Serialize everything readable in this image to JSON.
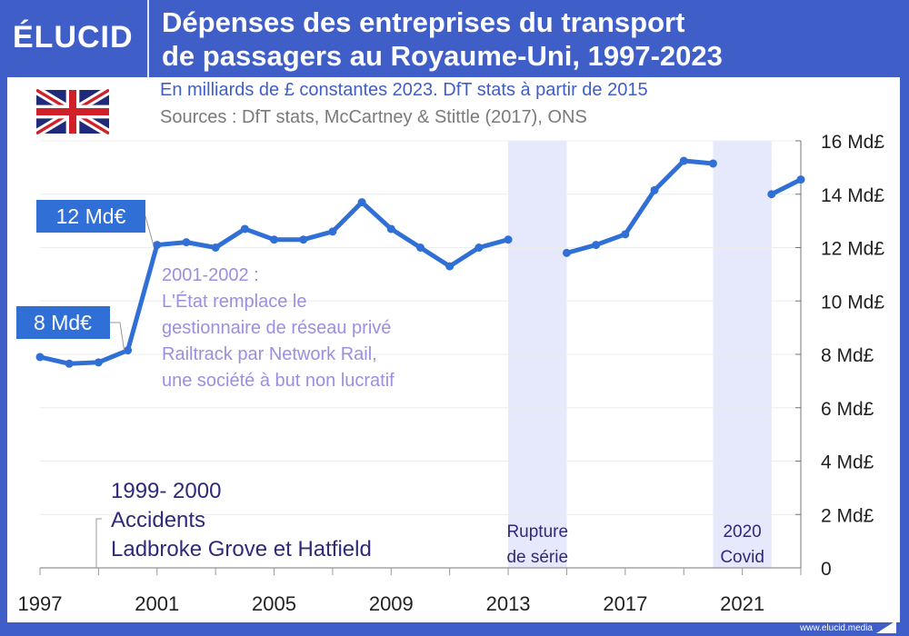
{
  "header": {
    "logo": "ÉLUCID",
    "title_line1": "Dépenses des entreprises du transport",
    "title_line2": "de passagers au Royaume-Uni, 1997-2023"
  },
  "subtitle": "En milliards de £ constantes 2023. DfT stats à partir de 2015",
  "sources": "Sources : DfT stats, McCartney & Stittle (2017), ONS",
  "footer": "www.elucid.media",
  "flag_icon": "uk-flag-icon",
  "colors": {
    "brand": "#3f5ec8",
    "line": "#2f6fd6",
    "band": "#e6e8fb",
    "annotation": "#9b8fe0",
    "dark_annotation": "#2d2b7a"
  },
  "chart_data": {
    "type": "line",
    "x": [
      1997,
      1998,
      1999,
      2000,
      2001,
      2002,
      2003,
      2004,
      2005,
      2006,
      2007,
      2008,
      2009,
      2010,
      2011,
      2012,
      2013,
      2014,
      2015,
      2016,
      2017,
      2018,
      2019,
      2020,
      2021,
      2022,
      2023
    ],
    "values": [
      7.9,
      7.65,
      7.7,
      8.15,
      12.1,
      12.2,
      12.0,
      12.7,
      12.3,
      12.3,
      12.6,
      13.7,
      12.7,
      12.0,
      11.3,
      12.0,
      12.3,
      null,
      11.8,
      12.1,
      12.5,
      14.15,
      15.25,
      15.15,
      null,
      14.0,
      14.55
    ],
    "xlim": [
      1997,
      2023
    ],
    "ylim": [
      0,
      16
    ],
    "xticks": [
      "1997",
      "2001",
      "2005",
      "2009",
      "2013",
      "2017",
      "2021"
    ],
    "yticks": [
      "0",
      "2 Md£",
      "4 Md£",
      "6 Md£",
      "8 Md£",
      "10 Md£",
      "12 Md£",
      "14 Md£",
      "16 Md£"
    ],
    "grid": true,
    "bands": [
      {
        "from": 2013,
        "to": 2015,
        "label1": "Rupture",
        "label2": "de série"
      },
      {
        "from": 2020,
        "to": 2022,
        "label1": "2020",
        "label2": "Covid"
      }
    ],
    "callouts": [
      {
        "label": "12 Md€",
        "year": 2001
      },
      {
        "label": "8 Md€",
        "year": 2000
      }
    ],
    "annotation_2001": [
      "2001-2002 :",
      "L'État remplace le",
      "gestionnaire de réseau privé",
      "Railtrack par Network Rail,",
      "une société à but non lucratif"
    ],
    "annotation_1999": [
      "1999- 2000",
      "Accidents",
      "Ladbroke Grove et Hatfield"
    ]
  }
}
